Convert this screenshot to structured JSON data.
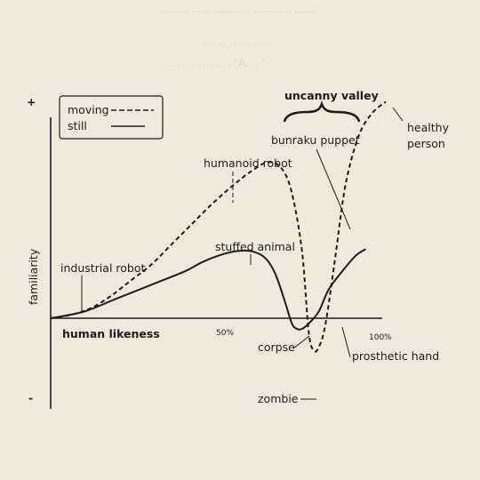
{
  "page": {
    "background": "#efe9de",
    "ink": "#1e1c1a",
    "faint_text_header_1": "......... ...... ............ ...... ..... ........",
    "faint_text_header_2": "....... ..... ... ...",
    "faint_text_header_3": "........ ........... \"A ... \""
  },
  "chart_data": {
    "type": "line",
    "title": "",
    "xlabel": "human likeness",
    "ylabel": "familiarity",
    "x_ticks": [
      "50%",
      "100%"
    ],
    "y_ticks": [
      "+",
      "-"
    ],
    "xlim": [
      0,
      100
    ],
    "ylim": [
      -1,
      1
    ],
    "grid": false,
    "legend": {
      "position": "top-left",
      "entries": [
        {
          "label": "moving",
          "style": "dashed"
        },
        {
          "label": "still",
          "style": "solid"
        }
      ]
    },
    "series": [
      {
        "name": "moving",
        "style": "dashed",
        "x": [
          0,
          6,
          12,
          18,
          24,
          30,
          36,
          42,
          48,
          54,
          60,
          65,
          69,
          72,
          75,
          77,
          78.5,
          80,
          82,
          85,
          88,
          92,
          96,
          100
        ],
        "y": [
          0,
          0.015,
          0.045,
          0.1,
          0.17,
          0.24,
          0.33,
          0.42,
          0.51,
          0.59,
          0.66,
          0.7,
          0.67,
          0.56,
          0.3,
          -0.18,
          -0.42,
          -0.38,
          -0.08,
          0.28,
          0.6,
          0.82,
          0.92,
          0.97
        ]
      },
      {
        "name": "still",
        "style": "solid",
        "x": [
          0,
          10,
          20,
          30,
          40,
          45,
          50,
          55,
          60,
          64,
          67,
          70,
          72,
          73.5,
          75,
          77,
          80,
          83,
          87,
          91,
          94
        ],
        "y": [
          0,
          0.03,
          0.09,
          0.15,
          0.21,
          0.25,
          0.28,
          0.3,
          0.3,
          0.27,
          0.2,
          0.07,
          -0.07,
          -0.14,
          -0.14,
          -0.07,
          0.03,
          0.13,
          0.21,
          0.28,
          0.31
        ]
      }
    ],
    "annotations": [
      {
        "text": "industrial robot",
        "x": 4,
        "y": 0.01,
        "series": "still"
      },
      {
        "text": "humanoid robot",
        "x": 48,
        "y": 0.51,
        "series": "moving"
      },
      {
        "text": "stuffed animal",
        "x": 59,
        "y": 0.3,
        "series": "still"
      },
      {
        "text": "bunraku puppet",
        "x": 82,
        "y": 0.03,
        "series": "moving"
      },
      {
        "text": "healthy person",
        "x": 100,
        "y": 0.97,
        "series": "moving"
      },
      {
        "text": "corpse",
        "x": 74,
        "y": -0.16,
        "series": "still"
      },
      {
        "text": "prosthetic hand",
        "x": 80,
        "y": 0.03,
        "series": "still"
      },
      {
        "text": "zombie",
        "x": 79,
        "y": -0.45,
        "series": "moving"
      },
      {
        "text": "uncanny valley",
        "x": 79,
        "y": 0.85,
        "series": ""
      }
    ]
  }
}
